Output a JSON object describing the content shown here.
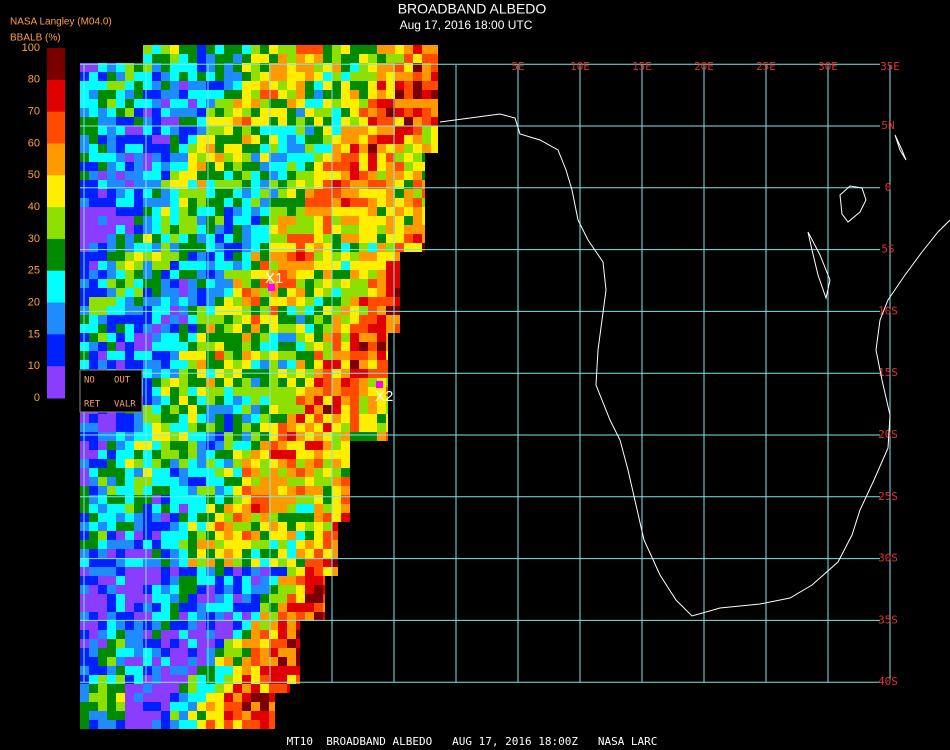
{
  "header": {
    "title": "BROADBAND ALBEDO",
    "subtitle": "Aug 17, 2016 18:00 UTC",
    "source": "NASA Langley (M04.0)"
  },
  "colorbar": {
    "label": "BBALB (%)",
    "ticks": [
      100,
      80,
      70,
      60,
      50,
      40,
      30,
      25,
      20,
      15,
      10,
      0
    ],
    "colors": [
      "#7a0000",
      "#e00000",
      "#ff4a00",
      "#ff9900",
      "#ffee00",
      "#8ee000",
      "#008a00",
      "#00ffff",
      "#1e8cff",
      "#0020ff",
      "#8a3cff"
    ]
  },
  "legend": {
    "items": [
      "NO",
      "OUT",
      "RET",
      "VALR"
    ]
  },
  "grid": {
    "lon_labels": [
      "5E",
      "10E",
      "15E",
      "20E",
      "25E",
      "30E",
      "35E"
    ],
    "lat_labels": [
      "5N",
      "0",
      "5S",
      "10S",
      "15S",
      "20S",
      "25S",
      "30S",
      "35S",
      "40S"
    ]
  },
  "markers": [
    {
      "label": "X1"
    },
    {
      "label": "X2"
    }
  ],
  "footer": "MT10  BROADBAND ALBEDO   AUG 17, 2016 18:00Z   NASA LARC"
}
